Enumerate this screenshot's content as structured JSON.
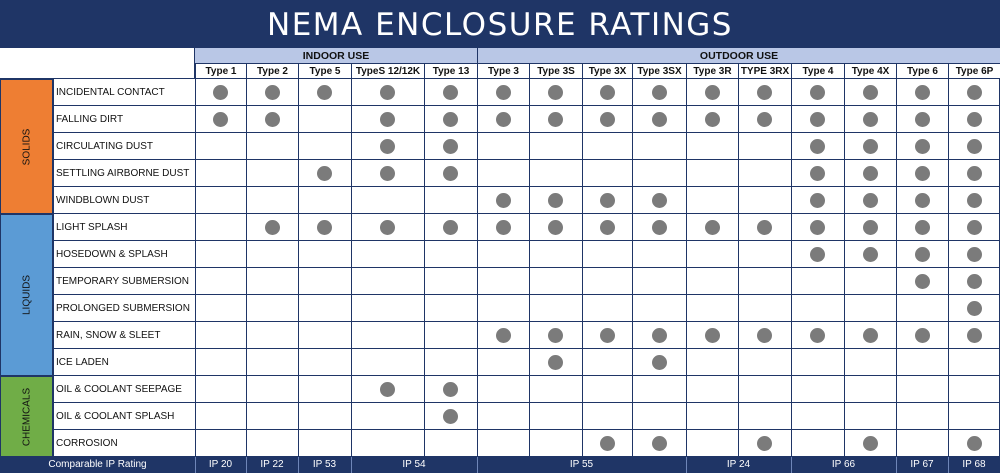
{
  "title": "NEMA ENCLOSURE RATINGS",
  "groups": [
    {
      "label": "INDOOR USE",
      "color": "#b9c7e6"
    },
    {
      "label": "OUTDOOR USE",
      "color": "#b9c7e6"
    }
  ],
  "columns": [
    "Type 1",
    "Type 2",
    "Type 5",
    "TypeS 12/12K",
    "Type 13",
    "Type 3",
    "Type 3S",
    "Type 3X",
    "Type 3SX",
    "Type 3R",
    "TYPE 3RX",
    "Type 4",
    "Type 4X",
    "Type 6",
    "Type 6P"
  ],
  "categories": [
    {
      "label": "SOLIDS",
      "color": "#ee7e33",
      "rows": 5
    },
    {
      "label": "LIQUIDS",
      "color": "#5b9bd5",
      "rows": 6
    },
    {
      "label": "CHEMICALS",
      "color": "#70ad47",
      "rows": 3
    }
  ],
  "rows": [
    {
      "label": "INCIDENTAL CONTACT",
      "ratings": [
        1,
        1,
        1,
        1,
        1,
        1,
        1,
        1,
        1,
        1,
        1,
        1,
        1,
        1,
        1
      ]
    },
    {
      "label": "FALLING DIRT",
      "ratings": [
        1,
        1,
        0,
        1,
        1,
        1,
        1,
        1,
        1,
        1,
        1,
        1,
        1,
        1,
        1
      ]
    },
    {
      "label": "CIRCULATING DUST",
      "ratings": [
        0,
        0,
        0,
        1,
        1,
        0,
        0,
        0,
        0,
        0,
        0,
        1,
        1,
        1,
        1
      ]
    },
    {
      "label": "SETTLING AIRBORNE DUST",
      "ratings": [
        0,
        0,
        1,
        1,
        1,
        0,
        0,
        0,
        0,
        0,
        0,
        1,
        1,
        1,
        1
      ]
    },
    {
      "label": "WINDBLOWN DUST",
      "ratings": [
        0,
        0,
        0,
        0,
        0,
        1,
        1,
        1,
        1,
        0,
        0,
        1,
        1,
        1,
        1
      ]
    },
    {
      "label": "LIGHT SPLASH",
      "ratings": [
        0,
        1,
        1,
        1,
        1,
        1,
        1,
        1,
        1,
        1,
        1,
        1,
        1,
        1,
        1
      ]
    },
    {
      "label": "HOSEDOWN & SPLASH",
      "ratings": [
        0,
        0,
        0,
        0,
        0,
        0,
        0,
        0,
        0,
        0,
        0,
        1,
        1,
        1,
        1
      ]
    },
    {
      "label": "TEMPORARY SUBMERSION",
      "ratings": [
        0,
        0,
        0,
        0,
        0,
        0,
        0,
        0,
        0,
        0,
        0,
        0,
        0,
        1,
        1
      ]
    },
    {
      "label": "PROLONGED SUBMERSION",
      "ratings": [
        0,
        0,
        0,
        0,
        0,
        0,
        0,
        0,
        0,
        0,
        0,
        0,
        0,
        0,
        1
      ]
    },
    {
      "label": "RAIN, SNOW & SLEET",
      "ratings": [
        0,
        0,
        0,
        0,
        0,
        1,
        1,
        1,
        1,
        1,
        1,
        1,
        1,
        1,
        1
      ]
    },
    {
      "label": "ICE LADEN",
      "ratings": [
        0,
        0,
        0,
        0,
        0,
        0,
        1,
        0,
        1,
        0,
        0,
        0,
        0,
        0,
        0
      ]
    },
    {
      "label": "OIL & COOLANT SEEPAGE",
      "ratings": [
        0,
        0,
        0,
        1,
        1,
        0,
        0,
        0,
        0,
        0,
        0,
        0,
        0,
        0,
        0
      ]
    },
    {
      "label": "OIL & COOLANT SPLASH",
      "ratings": [
        0,
        0,
        0,
        0,
        1,
        0,
        0,
        0,
        0,
        0,
        0,
        0,
        0,
        0,
        0
      ]
    },
    {
      "label": "CORROSION",
      "ratings": [
        0,
        0,
        0,
        0,
        0,
        0,
        0,
        1,
        1,
        0,
        1,
        0,
        1,
        0,
        1
      ]
    }
  ],
  "footer": {
    "label": "Comparable IP Rating",
    "ip": [
      {
        "text": "IP 20",
        "start": 0,
        "end": 0
      },
      {
        "text": "IP 22",
        "start": 1,
        "end": 1
      },
      {
        "text": "IP 53",
        "start": 2,
        "end": 2
      },
      {
        "text": "IP 54",
        "start": 3,
        "end": 4
      },
      {
        "text": "IP 55",
        "start": 5,
        "end": 8
      },
      {
        "text": "IP 24",
        "start": 9,
        "end": 10
      },
      {
        "text": "IP 66",
        "start": 11,
        "end": 12
      },
      {
        "text": "IP 67",
        "start": 13,
        "end": 13
      },
      {
        "text": "IP 68",
        "start": 14,
        "end": 14
      }
    ]
  },
  "colors": {
    "header_bg": "#1f3566",
    "dot": "#7b7b7b",
    "grid_line": "#1f3566"
  }
}
